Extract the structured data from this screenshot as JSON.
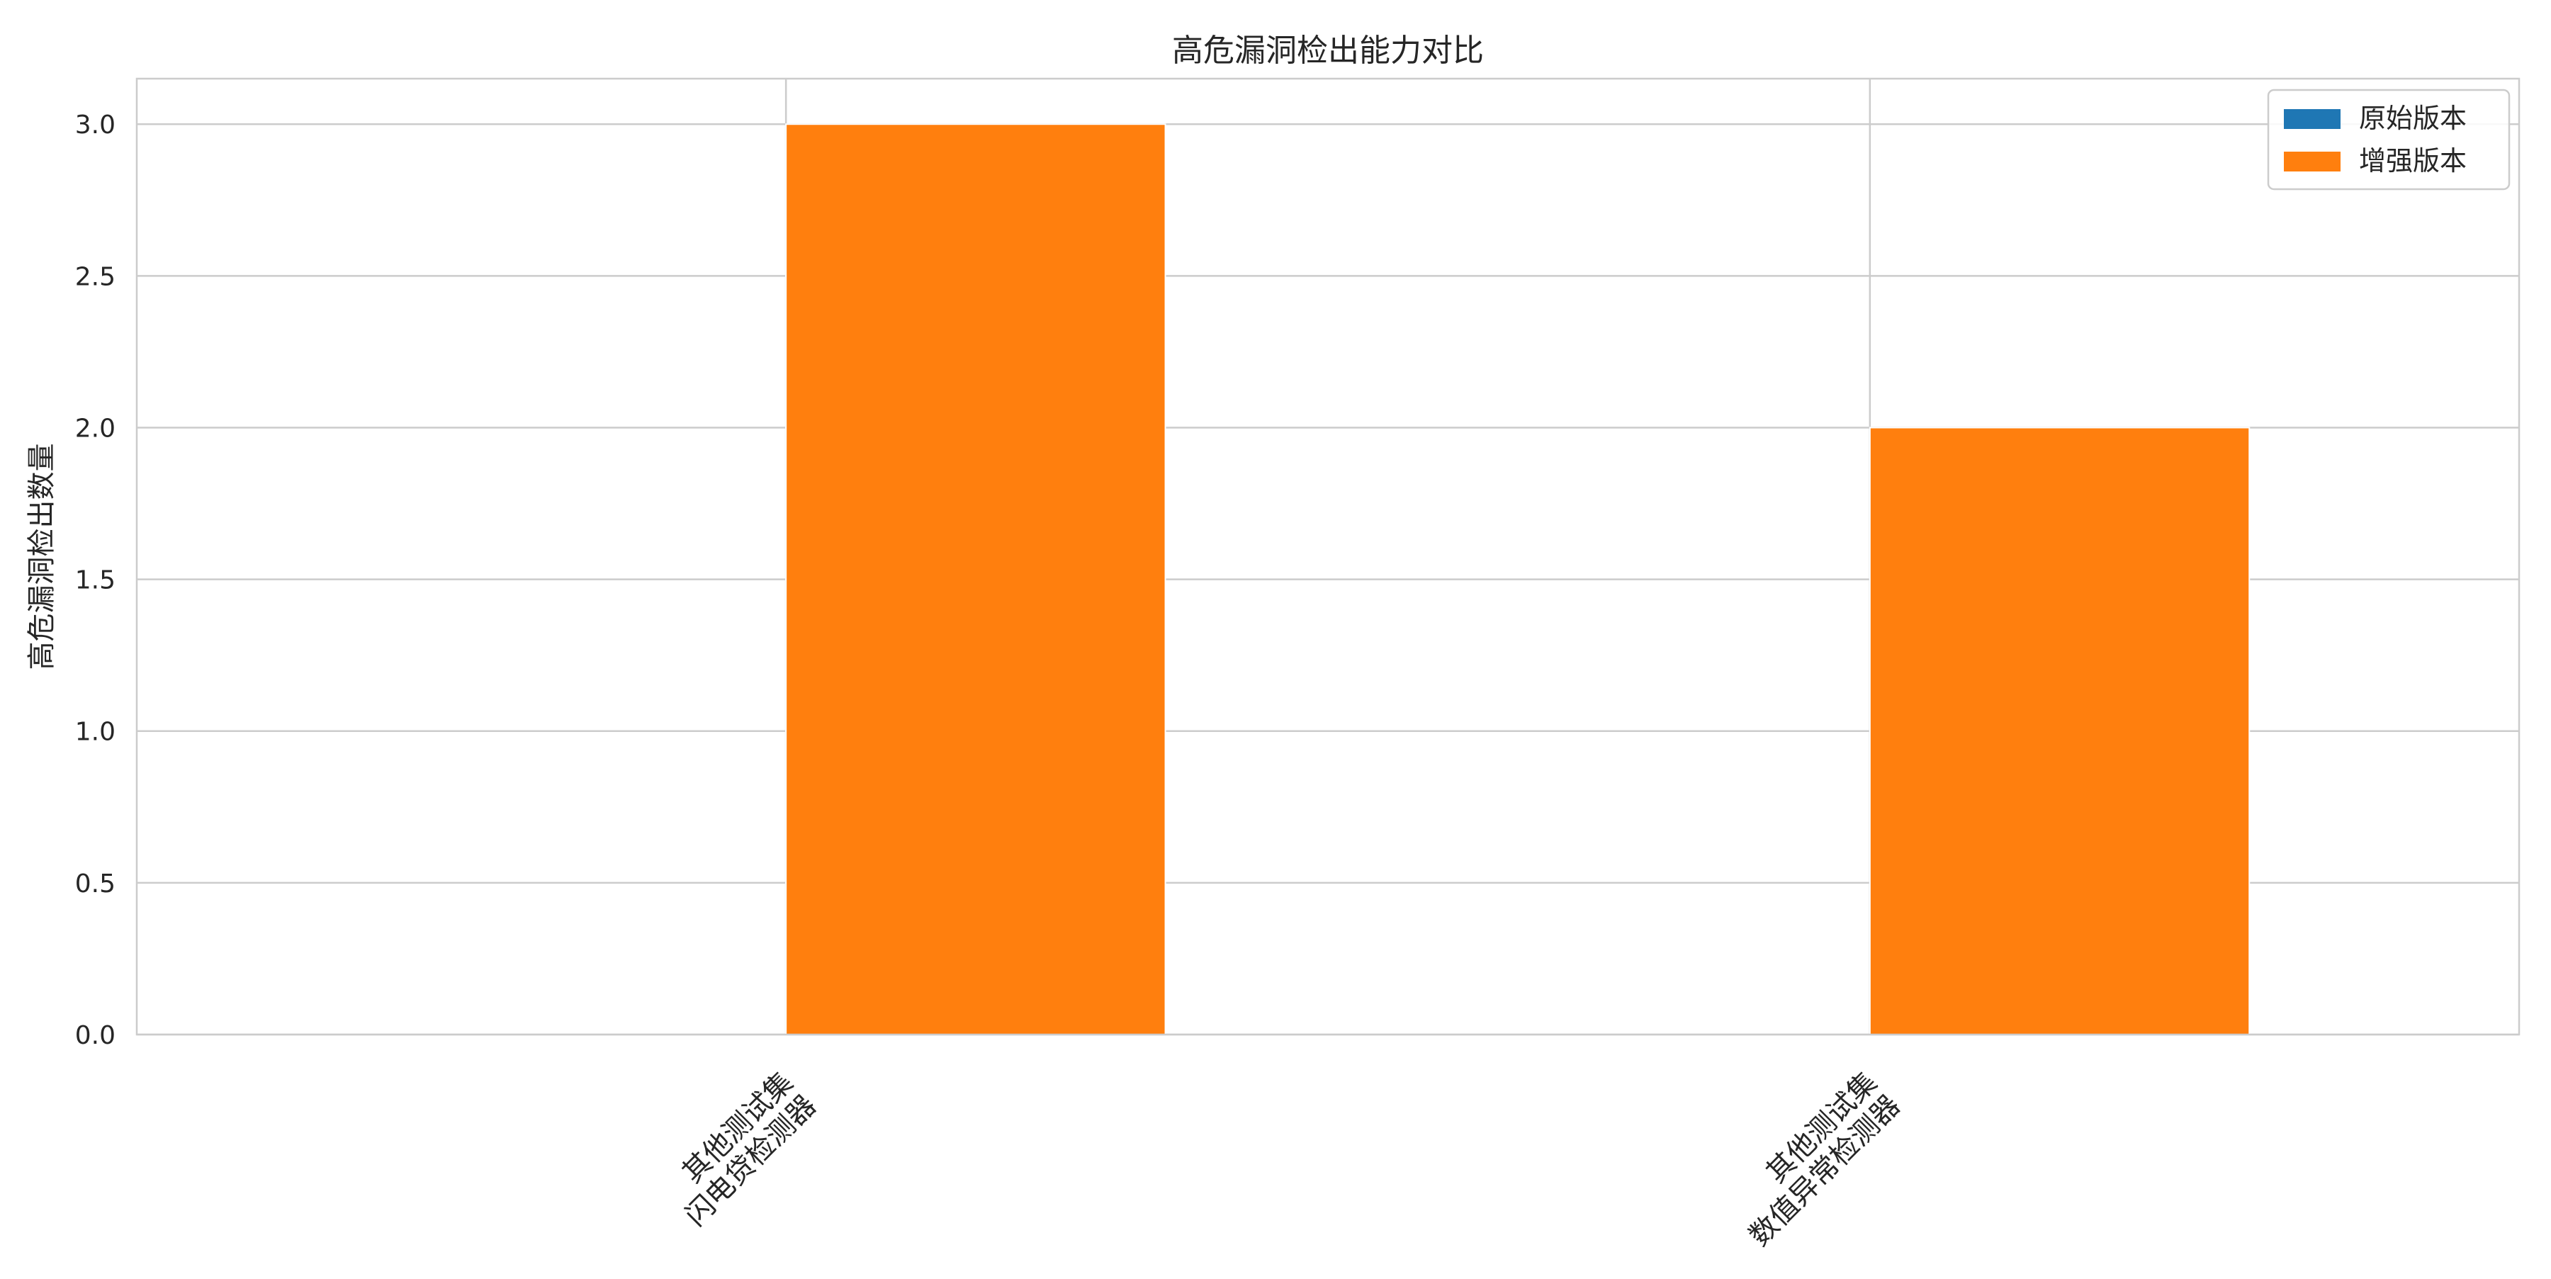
{
  "chart_data": {
    "type": "bar",
    "title": "高危漏洞检出能力对比",
    "xlabel": "",
    "ylabel": "高危漏洞检出数量",
    "categories": [
      [
        "其他测试集",
        "闪电贷检测器"
      ],
      [
        "其他测试集",
        "数值异常检测器"
      ]
    ],
    "series": [
      {
        "name": "原始版本",
        "color": "#1f77b4",
        "values": [
          0,
          0
        ]
      },
      {
        "name": "增强版本",
        "color": "#ff7f0e",
        "values": [
          3,
          2
        ]
      }
    ],
    "ylim": [
      0,
      3.15
    ],
    "yticks": [
      "0.0",
      "0.5",
      "1.0",
      "1.5",
      "2.0",
      "2.5",
      "3.0"
    ],
    "grid": true,
    "legend_position": "top-right"
  }
}
